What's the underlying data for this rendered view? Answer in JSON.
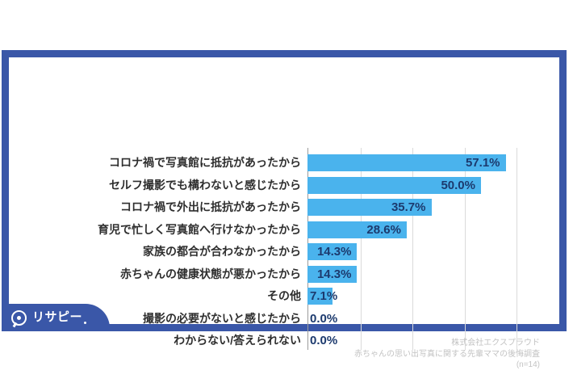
{
  "brand": {
    "logo_text": "リサピー"
  },
  "footer_source": {
    "company": "株式会社エクスプラウド",
    "survey": "赤ちゃんの思い出写真に関する先輩ママの後悔調査",
    "sample": "(n=14)"
  },
  "chart_data": {
    "type": "bar",
    "orientation": "horizontal",
    "title": "",
    "categories": [
      "コロナ禍で写真館に抵抗があったから",
      "セルフ撮影でも構わないと感じたから",
      "コロナ禍で外出に抵抗があったから",
      "育児で忙しく写真館へ行けなかったから",
      "家族の都合が合わなかったから",
      "赤ちゃんの健康状態が悪かったから",
      "その他",
      "撮影の必要がないと感じたから",
      "わからない/答えられない"
    ],
    "values": [
      57.1,
      50.0,
      35.7,
      28.6,
      14.3,
      14.3,
      7.1,
      0.0,
      0.0
    ],
    "value_labels": [
      "57.1%",
      "50.0%",
      "35.7%",
      "28.6%",
      "14.3%",
      "14.3%",
      "7.1%",
      "0.0%",
      "0.0%"
    ],
    "unit": "%",
    "xlim": [
      0,
      60
    ],
    "gridlines": [
      15,
      30,
      45,
      60
    ],
    "grid": true,
    "legend": false,
    "colors": {
      "bar": "#4AB3ED",
      "value_text": "#1C3A6E",
      "category_text": "#2E2E2E",
      "frame": "#3A57A8",
      "gridline": "#DADADA",
      "axis": "#9B9B9B",
      "source_text": "#C3C3C3"
    }
  }
}
